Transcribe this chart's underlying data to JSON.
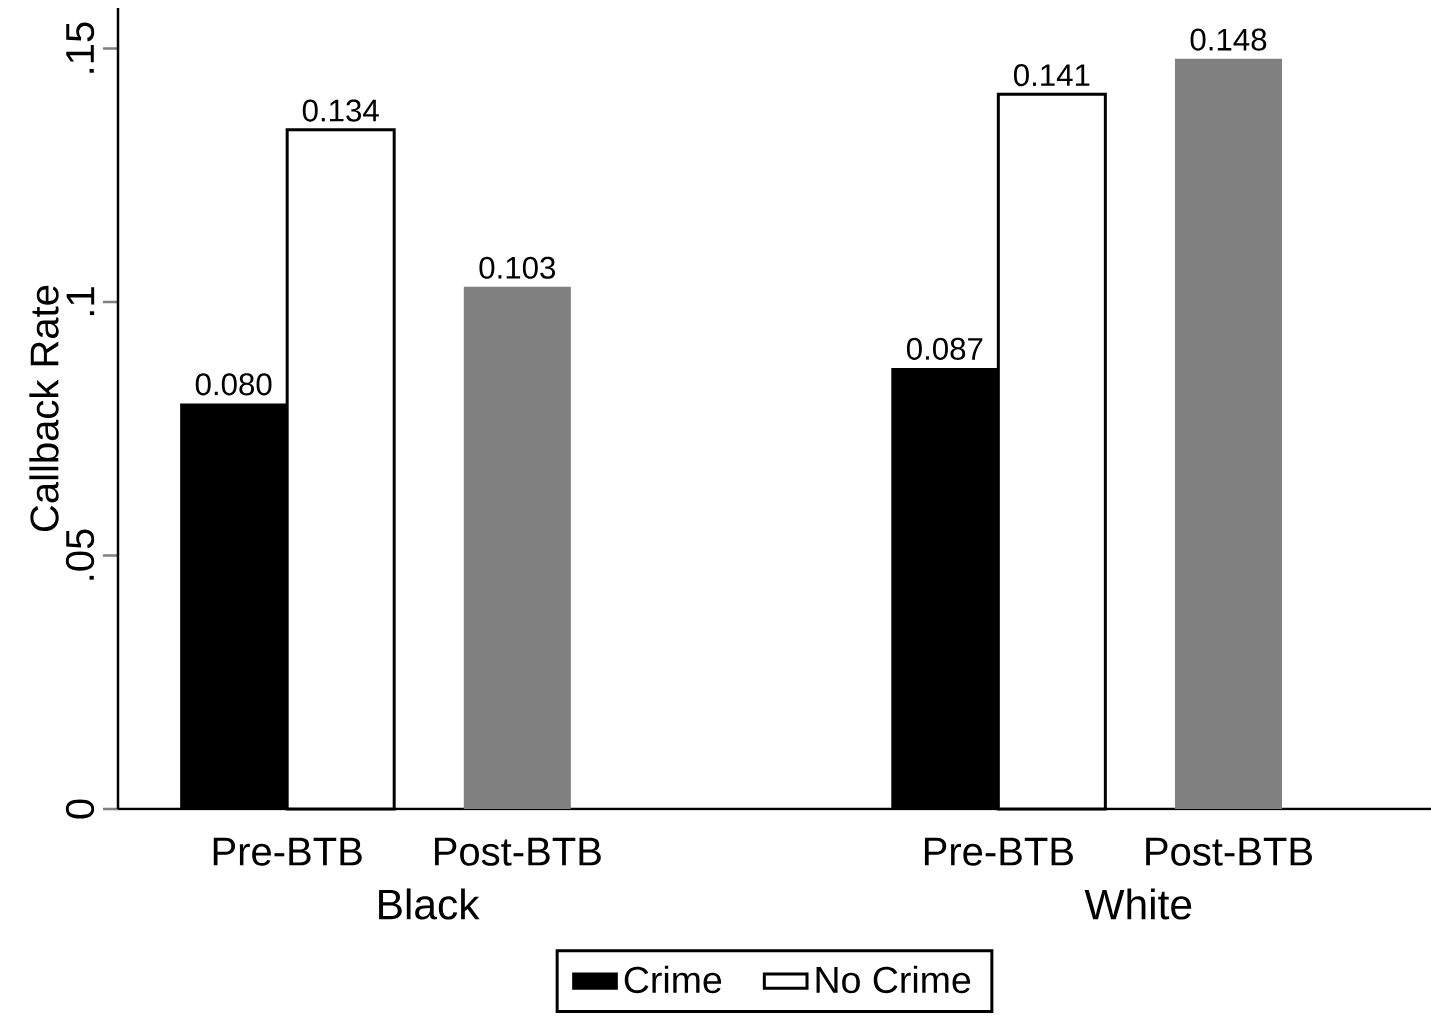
{
  "chart_data": {
    "type": "bar",
    "ylabel": "Callback Rate",
    "categories": [
      "Pre-BTB",
      "Post-BTB",
      "Pre-BTB",
      "Post-BTB"
    ],
    "series": [
      {
        "name": "Crime",
        "color": "#000000",
        "values": [
          0.08,
          null,
          0.087,
          null
        ],
        "value_labels": [
          "0.080",
          null,
          "0.087",
          null
        ]
      },
      {
        "name": "No Crime",
        "color": "#ffffff",
        "values": [
          0.134,
          null,
          0.141,
          null
        ],
        "value_labels": [
          "0.134",
          null,
          "0.141",
          null
        ]
      },
      {
        "color": "#808080",
        "values": [
          null,
          0.103,
          null,
          0.148
        ],
        "value_labels": [
          null,
          "0.103",
          null,
          "0.148"
        ]
      }
    ],
    "annotations": [
      "Black",
      "White"
    ],
    "ylim": [
      0,
      0.158
    ],
    "yticks": [
      {
        "value": 0,
        "label": "0"
      },
      {
        "value": 0.05,
        "label": ".05"
      },
      {
        "value": 0.1,
        "label": ".1"
      },
      {
        "value": 0.15,
        "label": ".15"
      }
    ],
    "grid": false,
    "legend": "bottom"
  }
}
